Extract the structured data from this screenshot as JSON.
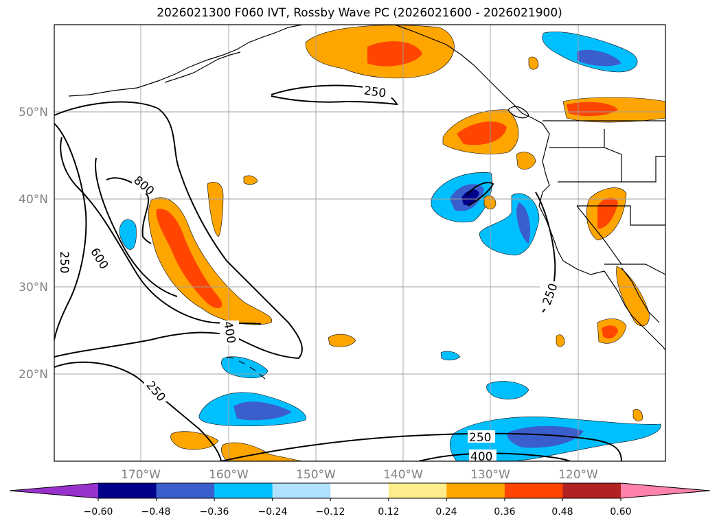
{
  "title": "2026021300 F060 IVT, Rossby Wave PC (2026021600 - 2026021900)",
  "lat_labels": [
    "50°N",
    "40°N",
    "30°N",
    "20°N"
  ],
  "lon_labels": [
    "170°W",
    "160°W",
    "150°W",
    "140°W",
    "130°W",
    "120°W"
  ],
  "contour_labels": [
    "250",
    "800",
    "600",
    "250",
    "400",
    "250",
    "250",
    "250",
    "400"
  ],
  "colorbar": {
    "ticks": [
      "−0.60",
      "−0.48",
      "−0.36",
      "−0.24",
      "−0.12",
      "0.12",
      "0.24",
      "0.36",
      "0.48",
      "0.60"
    ],
    "colors": [
      "#9932cc",
      "#00008b",
      "#3a5fcd",
      "#00bfff",
      "#b0e2ff",
      "#ffffff",
      "#ffec8b",
      "#ffa500",
      "#ff4500",
      "#b22222",
      "#ff82ab"
    ]
  },
  "colors": {
    "neg_light": "#b0e2ff",
    "neg_mid": "#00bfff",
    "neg_strong": "#3a5fcd",
    "neg_max": "#00008b",
    "pos_light": "#ffec8b",
    "pos_mid": "#ffa500",
    "pos_strong": "#ff4500",
    "pos_max": "#b22222"
  }
}
